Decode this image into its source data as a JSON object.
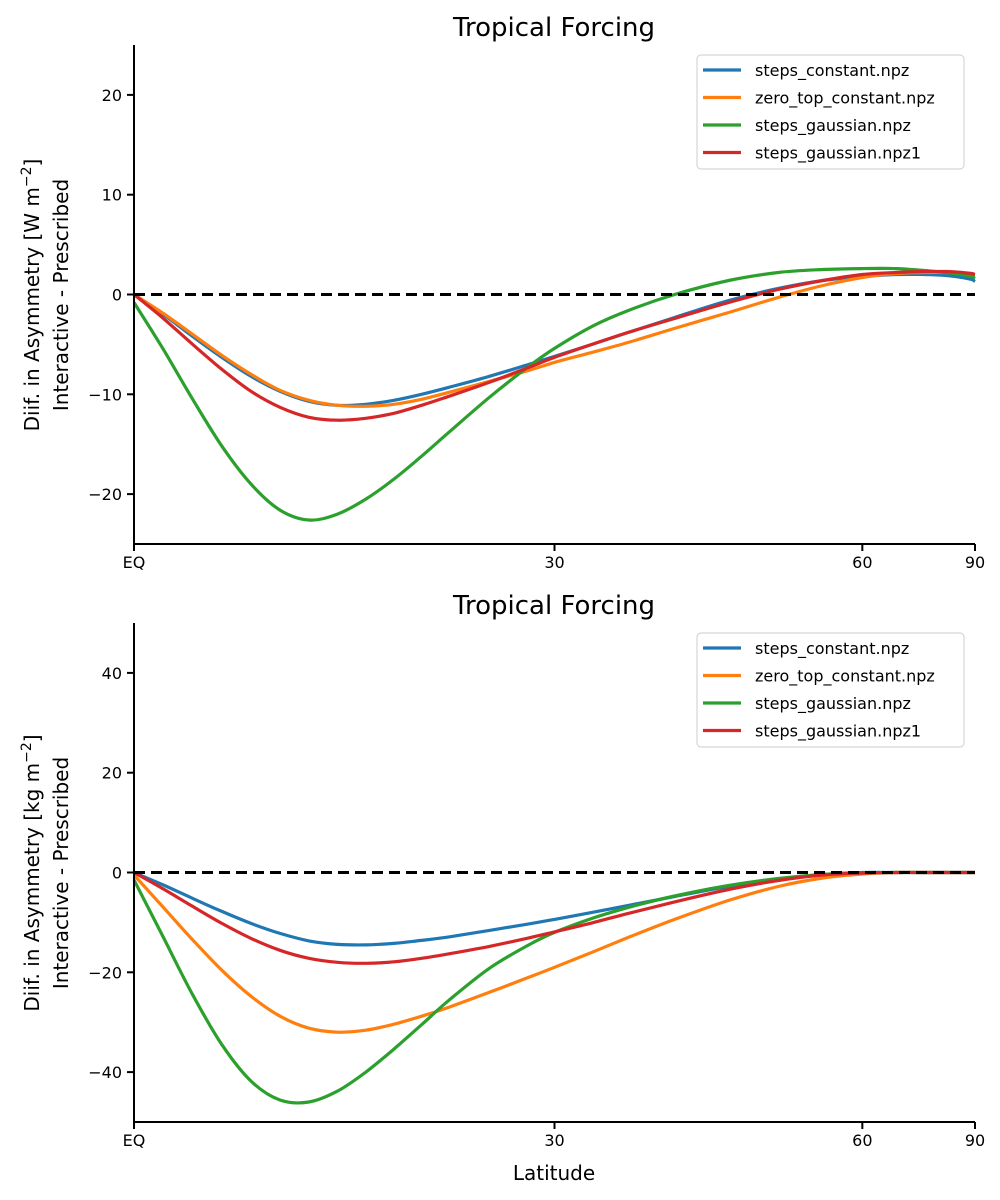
{
  "figure": {
    "colors": {
      "steps_constant": "#1f77b4",
      "zero_top_constant": "#ff7f0e",
      "steps_gaussian": "#2ca02c",
      "steps_gaussian1": "#d62728",
      "zero_line": "#000000"
    },
    "xlabel": "Latitude"
  },
  "chart_data": [
    {
      "type": "line",
      "title": "Tropical Forcing",
      "ylabel_line1": "Diif. in Asymmetry [W m",
      "ylabel_sup": "−2",
      "ylabel_line1_end": "]",
      "ylabel_line2": "Interactive - Prescribed",
      "xlabel": "",
      "x_scale": "sin(latitude)",
      "x_ticks": [
        0,
        30,
        60,
        90
      ],
      "x_tick_labels": [
        "EQ",
        "30",
        "60",
        "90"
      ],
      "ylim": [
        -25,
        25
      ],
      "y_ticks": [
        -20,
        -10,
        0,
        10,
        20
      ],
      "y_tick_labels": [
        "−20",
        "−10",
        "0",
        "10",
        "20"
      ],
      "zero_line": true,
      "legend_position": "top-right",
      "x": [
        0,
        2,
        4,
        6,
        8,
        10,
        12,
        14,
        16,
        18,
        20,
        22,
        25,
        28,
        30,
        33,
        36,
        40,
        45,
        50,
        55,
        60,
        65,
        70,
        75,
        80,
        85,
        90
      ],
      "series": [
        {
          "name": "steps_constant.npz",
          "color_key": "steps_constant",
          "values": [
            0,
            -2,
            -4.2,
            -6.3,
            -8.2,
            -9.7,
            -10.7,
            -11.1,
            -11.0,
            -10.6,
            -10.0,
            -9.3,
            -8.2,
            -7.0,
            -6.2,
            -5.0,
            -3.8,
            -2.3,
            -0.6,
            0.6,
            1.4,
            1.8,
            2.0,
            2.0,
            1.9,
            1.7,
            1.5,
            1.3
          ]
        },
        {
          "name": "zero_top_constant.npz",
          "color_key": "zero_top_constant",
          "values": [
            0,
            -1.9,
            -4.0,
            -6.1,
            -8.0,
            -9.6,
            -10.6,
            -11.1,
            -11.2,
            -11.0,
            -10.5,
            -9.8,
            -8.7,
            -7.6,
            -6.8,
            -5.8,
            -4.8,
            -3.4,
            -1.8,
            -0.3,
            0.9,
            1.7,
            2.1,
            2.2,
            2.2,
            2.1,
            2.0,
            2.0
          ]
        },
        {
          "name": "steps_gaussian.npz",
          "color_key": "steps_gaussian",
          "values": [
            -0.8,
            -5.5,
            -10.5,
            -15.2,
            -19.0,
            -21.6,
            -22.6,
            -22.0,
            -20.5,
            -18.5,
            -16.2,
            -13.8,
            -10.3,
            -7.2,
            -5.4,
            -3.2,
            -1.6,
            0.0,
            1.4,
            2.2,
            2.5,
            2.6,
            2.6,
            2.4,
            2.2,
            2.0,
            1.8,
            1.6
          ]
        },
        {
          "name": "steps_gaussian.npz1",
          "color_key": "steps_gaussian1",
          "values": [
            0,
            -2.4,
            -5.0,
            -7.5,
            -9.7,
            -11.3,
            -12.3,
            -12.6,
            -12.4,
            -11.9,
            -11.1,
            -10.2,
            -8.8,
            -7.3,
            -6.3,
            -5.0,
            -3.8,
            -2.4,
            -0.8,
            0.5,
            1.4,
            2.0,
            2.2,
            2.3,
            2.3,
            2.2,
            2.1,
            2.0
          ]
        }
      ]
    },
    {
      "type": "line",
      "title": "Tropical Forcing",
      "ylabel_line1": "Diif. in Asymmetry [kg m",
      "ylabel_sup": "−2",
      "ylabel_line1_end": "]",
      "ylabel_line2": "Interactive - Prescribed",
      "xlabel": "Latitude",
      "x_scale": "sin(latitude)",
      "x_ticks": [
        0,
        30,
        60,
        90
      ],
      "x_tick_labels": [
        "EQ",
        "30",
        "60",
        "90"
      ],
      "ylim": [
        -50,
        50
      ],
      "y_ticks": [
        -40,
        -20,
        0,
        20,
        40
      ],
      "y_tick_labels": [
        "−40",
        "−20",
        "0",
        "20",
        "40"
      ],
      "zero_line": true,
      "legend_position": "top-right",
      "x": [
        0,
        2,
        4,
        6,
        8,
        10,
        12,
        14,
        16,
        18,
        20,
        22,
        25,
        28,
        30,
        33,
        36,
        40,
        45,
        50,
        55,
        60,
        65,
        70,
        75,
        80,
        85,
        90
      ],
      "series": [
        {
          "name": "steps_constant.npz",
          "color_key": "steps_constant",
          "values": [
            0,
            -2.5,
            -5.2,
            -7.8,
            -10.2,
            -12.2,
            -13.7,
            -14.4,
            -14.5,
            -14.2,
            -13.6,
            -12.9,
            -11.6,
            -10.3,
            -9.4,
            -8.0,
            -6.6,
            -4.8,
            -2.8,
            -1.3,
            -0.4,
            0,
            0,
            0,
            0,
            0,
            0,
            0
          ]
        },
        {
          "name": "zero_top_constant.npz",
          "color_key": "zero_top_constant",
          "values": [
            -0.5,
            -7.0,
            -13.5,
            -19.6,
            -24.8,
            -28.8,
            -31.2,
            -32.0,
            -31.6,
            -30.4,
            -28.8,
            -27.0,
            -24.0,
            -21.0,
            -19.0,
            -16.0,
            -13.0,
            -9.4,
            -5.6,
            -2.8,
            -1.1,
            -0.3,
            0,
            0,
            0,
            0,
            0,
            0
          ]
        },
        {
          "name": "steps_gaussian.npz",
          "color_key": "steps_gaussian",
          "values": [
            -1.5,
            -13.0,
            -24.5,
            -34.5,
            -41.8,
            -45.6,
            -46.0,
            -43.8,
            -40.0,
            -35.4,
            -30.5,
            -25.6,
            -19.2,
            -14.5,
            -12.0,
            -9.2,
            -7.0,
            -4.7,
            -2.6,
            -1.2,
            -0.4,
            -0.1,
            0,
            0,
            0,
            0,
            0,
            0
          ]
        },
        {
          "name": "steps_gaussian.npz1",
          "color_key": "steps_gaussian1",
          "values": [
            0,
            -3.3,
            -6.8,
            -10.2,
            -13.2,
            -15.6,
            -17.2,
            -18.0,
            -18.2,
            -17.9,
            -17.2,
            -16.3,
            -14.8,
            -13.1,
            -11.9,
            -10.1,
            -8.2,
            -5.9,
            -3.4,
            -1.6,
            -0.5,
            -0.1,
            0,
            0,
            0,
            0,
            0,
            0
          ]
        }
      ]
    }
  ]
}
